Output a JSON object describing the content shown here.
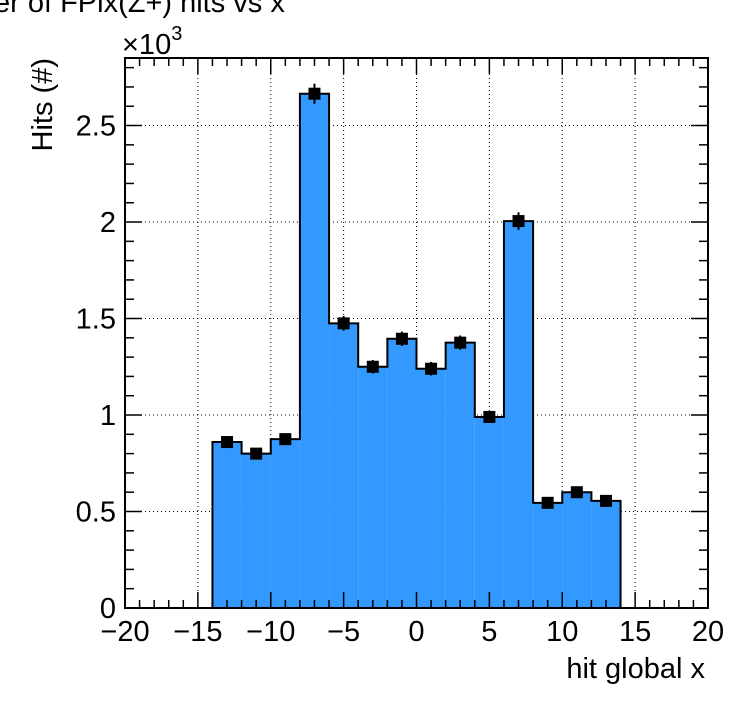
{
  "chart_data": {
    "type": "bar",
    "title": "er of FPix(Z+) hits vs x",
    "xlabel": "hit global x",
    "ylabel": "Hits (#)",
    "y_multiplier_label": "×10",
    "y_multiplier_exponent": "3",
    "xlim": [
      -20,
      20
    ],
    "ylim": [
      0,
      2850
    ],
    "grid": true,
    "bin_width": 2,
    "x": [
      -13,
      -11,
      -9,
      -7,
      -5,
      -3,
      -1,
      1,
      3,
      5,
      7,
      9,
      11,
      13
    ],
    "values": [
      860,
      800,
      875,
      2665,
      1475,
      1250,
      1395,
      1240,
      1375,
      990,
      2005,
      545,
      600,
      555
    ],
    "errors": [
      29,
      28,
      30,
      52,
      38,
      35,
      37,
      35,
      37,
      31,
      45,
      23,
      24,
      24
    ],
    "fill_color": "#3399ff",
    "marker_color": "#000000",
    "x_ticks": [
      "−20",
      "−15",
      "−10",
      "−5",
      "0",
      "5",
      "10",
      "15",
      "20"
    ],
    "x_tick_values": [
      -20,
      -15,
      -10,
      -5,
      0,
      5,
      10,
      15,
      20
    ],
    "y_ticks": [
      "0",
      "0.5",
      "1",
      "1.5",
      "2",
      "2.5"
    ],
    "y_tick_values": [
      0,
      500,
      1000,
      1500,
      2000,
      2500
    ]
  }
}
